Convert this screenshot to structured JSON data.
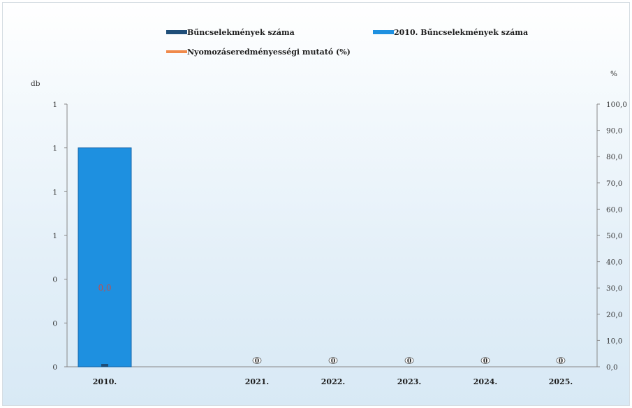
{
  "chart_data": {
    "type": "bar",
    "categories": [
      "2010.",
      "2021.",
      "2022.",
      "2023.",
      "2024.",
      "2025."
    ],
    "series": [
      {
        "name": "Bűncselekmények száma",
        "values": [
          0,
          0,
          0,
          0,
          0,
          0
        ],
        "color": "#1f4e79"
      },
      {
        "name": "2010. Bűncselekmények száma",
        "values": [
          1,
          null,
          null,
          null,
          null,
          null
        ],
        "color": "#1e90e0"
      },
      {
        "name": "Nyomozáseredményességi mutató (%)",
        "values": [
          30.0,
          null,
          null,
          null,
          null,
          null
        ],
        "color": "#f08a4b"
      }
    ],
    "data_labels": [
      "0",
      "0",
      "0",
      "0",
      "0"
    ],
    "pct_label": "0,0",
    "y_left": {
      "label": "db",
      "ticks": [
        "1",
        "1",
        "1",
        "1",
        "0",
        "0",
        "0"
      ],
      "ylim": [
        0,
        1.2
      ]
    },
    "y_right": {
      "label": "%",
      "ticks": [
        "100,0",
        "90,0",
        "80,0",
        "70,0",
        "60,0",
        "50,0",
        "40,0",
        "30,0",
        "20,0",
        "10,0",
        "0,0"
      ],
      "ylim": [
        0,
        100
      ]
    },
    "legend_position": "top"
  }
}
